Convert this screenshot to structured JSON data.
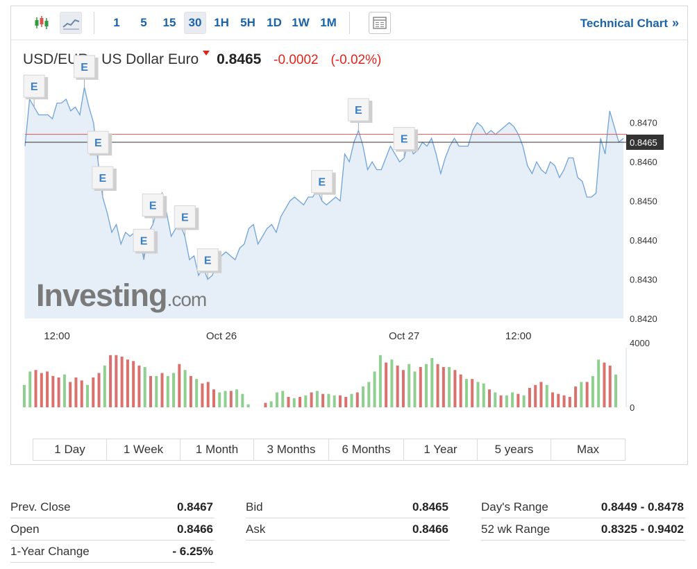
{
  "toolbar": {
    "chart_types": [
      {
        "name": "candlestick-chart-icon"
      },
      {
        "name": "area-chart-icon",
        "active": true
      }
    ],
    "intervals": [
      "1",
      "5",
      "15",
      "30",
      "1H",
      "5H",
      "1D",
      "1W",
      "1M"
    ],
    "active_interval": "30",
    "indicator_icon": "table-icon",
    "technical_link": "Technical Chart",
    "technical_arrows": "»"
  },
  "quote": {
    "name": "USD/EUR - US Dollar Euro",
    "last": "0.8465",
    "change": "-0.0002",
    "change_pct": "(-0.02%)",
    "direction": "down"
  },
  "watermark": {
    "main": "Investing",
    "suffix": ".com"
  },
  "colors": {
    "line": "#6fa3d8",
    "area": "#e6eef7",
    "up_volume": "#8fcf8f",
    "down_volume": "#d9716e",
    "prev_close_line": "#e05555",
    "last_price_line": "#333333",
    "label_bg": "#333333",
    "accent_link": "#1a63a8",
    "negative": "#e2231a"
  },
  "chart_data": {
    "type": "area",
    "instrument": "USD/EUR",
    "x_ticks": [
      "12:00",
      "Oct 26",
      "Oct 27",
      "12:00"
    ],
    "y_ticks": [
      "0.8420",
      "0.8430",
      "0.8440",
      "0.8450",
      "0.8460",
      "0.8470"
    ],
    "ylim": [
      0.842,
      0.8482
    ],
    "last_price": 0.8465,
    "last_price_label": "0.8465",
    "prev_close": 0.8467,
    "price": [
      0.8464,
      0.8476,
      0.8474,
      0.8472,
      0.8472,
      0.8472,
      0.8471,
      0.8475,
      0.8475,
      0.8476,
      0.8473,
      0.8474,
      0.8472,
      0.8479,
      0.8474,
      0.847,
      0.846,
      0.8451,
      0.8447,
      0.8442,
      0.8444,
      0.8439,
      0.8442,
      0.8441,
      0.8442,
      0.8442,
      0.8435,
      0.8442,
      0.8444,
      0.8448,
      0.8452,
      0.8447,
      0.8441,
      0.8443,
      0.8444,
      0.8441,
      0.8435,
      0.8436,
      0.8431,
      0.8433,
      0.843,
      0.8431,
      0.8434,
      0.8436,
      0.8437,
      0.8436,
      0.8435,
      0.8438,
      0.8439,
      0.8443,
      0.8444,
      0.8439,
      0.8441,
      0.8443,
      0.8444,
      0.8442,
      0.8446,
      0.8448,
      0.845,
      0.8451,
      0.845,
      0.8449,
      0.8451,
      0.8451,
      0.8453,
      0.845,
      0.8449,
      0.845,
      0.8451,
      0.845,
      0.8462,
      0.846,
      0.8465,
      0.8468,
      0.8464,
      0.8458,
      0.846,
      0.8458,
      0.8458,
      0.8461,
      0.8464,
      0.8462,
      0.846,
      0.8461,
      0.8466,
      0.8462,
      0.8463,
      0.8465,
      0.8464,
      0.8466,
      0.8462,
      0.8457,
      0.8461,
      0.8464,
      0.8466,
      0.8464,
      0.8464,
      0.8464,
      0.8468,
      0.847,
      0.8469,
      0.8467,
      0.8468,
      0.8467,
      0.8468,
      0.8469,
      0.847,
      0.8469,
      0.8467,
      0.8464,
      0.8459,
      0.8457,
      0.846,
      0.8458,
      0.8457,
      0.846,
      0.8459,
      0.8456,
      0.8458,
      0.8461,
      0.8461,
      0.8456,
      0.8455,
      0.8451,
      0.8451,
      0.8452,
      0.8466,
      0.8462,
      0.8473,
      0.8469,
      0.8465,
      0.8466
    ],
    "volume_axis_ticks": [
      "4000",
      "0"
    ],
    "volume_max": 4000,
    "volume": [
      {
        "v": 1500,
        "d": "up"
      },
      {
        "v": 2400,
        "d": "up"
      },
      {
        "v": 2500,
        "d": "down"
      },
      {
        "v": 2300,
        "d": "down"
      },
      {
        "v": 2400,
        "d": "down"
      },
      {
        "v": 2100,
        "d": "down"
      },
      {
        "v": 2000,
        "d": "down"
      },
      {
        "v": 2200,
        "d": "up"
      },
      {
        "v": 1700,
        "d": "down"
      },
      {
        "v": 2000,
        "d": "down"
      },
      {
        "v": 1800,
        "d": "down"
      },
      {
        "v": 1500,
        "d": "up"
      },
      {
        "v": 2000,
        "d": "down"
      },
      {
        "v": 2300,
        "d": "down"
      },
      {
        "v": 2800,
        "d": "up"
      },
      {
        "v": 3500,
        "d": "down"
      },
      {
        "v": 3500,
        "d": "down"
      },
      {
        "v": 3400,
        "d": "down"
      },
      {
        "v": 3200,
        "d": "down"
      },
      {
        "v": 3100,
        "d": "down"
      },
      {
        "v": 2800,
        "d": "down"
      },
      {
        "v": 2700,
        "d": "up"
      },
      {
        "v": 2100,
        "d": "down"
      },
      {
        "v": 2100,
        "d": "up"
      },
      {
        "v": 2300,
        "d": "down"
      },
      {
        "v": 2100,
        "d": "up"
      },
      {
        "v": 2300,
        "d": "up"
      },
      {
        "v": 2900,
        "d": "down"
      },
      {
        "v": 2500,
        "d": "up"
      },
      {
        "v": 2100,
        "d": "down"
      },
      {
        "v": 1900,
        "d": "up"
      },
      {
        "v": 1600,
        "d": "down"
      },
      {
        "v": 1700,
        "d": "down"
      },
      {
        "v": 1200,
        "d": "down"
      },
      {
        "v": 1000,
        "d": "up"
      },
      {
        "v": 1100,
        "d": "up"
      },
      {
        "v": 1100,
        "d": "down"
      },
      {
        "v": 1200,
        "d": "up"
      },
      {
        "v": 900,
        "d": "up"
      },
      {
        "v": 200,
        "d": "up"
      },
      {
        "v": 0,
        "d": "up"
      },
      {
        "v": 0,
        "d": "up"
      },
      {
        "v": 300,
        "d": "down"
      },
      {
        "v": 400,
        "d": "up"
      },
      {
        "v": 1000,
        "d": "up"
      },
      {
        "v": 1100,
        "d": "up"
      },
      {
        "v": 700,
        "d": "down"
      },
      {
        "v": 600,
        "d": "up"
      },
      {
        "v": 700,
        "d": "down"
      },
      {
        "v": 800,
        "d": "up"
      },
      {
        "v": 1000,
        "d": "down"
      },
      {
        "v": 1100,
        "d": "up"
      },
      {
        "v": 900,
        "d": "down"
      },
      {
        "v": 900,
        "d": "up"
      },
      {
        "v": 800,
        "d": "up"
      },
      {
        "v": 800,
        "d": "down"
      },
      {
        "v": 700,
        "d": "down"
      },
      {
        "v": 900,
        "d": "up"
      },
      {
        "v": 1000,
        "d": "down"
      },
      {
        "v": 1400,
        "d": "up"
      },
      {
        "v": 1700,
        "d": "up"
      },
      {
        "v": 2400,
        "d": "up"
      },
      {
        "v": 3500,
        "d": "up"
      },
      {
        "v": 3000,
        "d": "down"
      },
      {
        "v": 3200,
        "d": "up"
      },
      {
        "v": 2800,
        "d": "down"
      },
      {
        "v": 2500,
        "d": "down"
      },
      {
        "v": 2900,
        "d": "up"
      },
      {
        "v": 2400,
        "d": "up"
      },
      {
        "v": 2700,
        "d": "down"
      },
      {
        "v": 2900,
        "d": "up"
      },
      {
        "v": 3300,
        "d": "up"
      },
      {
        "v": 2900,
        "d": "down"
      },
      {
        "v": 2700,
        "d": "down"
      },
      {
        "v": 2700,
        "d": "up"
      },
      {
        "v": 2500,
        "d": "down"
      },
      {
        "v": 2200,
        "d": "down"
      },
      {
        "v": 1900,
        "d": "up"
      },
      {
        "v": 1900,
        "d": "down"
      },
      {
        "v": 1700,
        "d": "up"
      },
      {
        "v": 1600,
        "d": "up"
      },
      {
        "v": 1200,
        "d": "down"
      },
      {
        "v": 1000,
        "d": "up"
      },
      {
        "v": 800,
        "d": "down"
      },
      {
        "v": 800,
        "d": "up"
      },
      {
        "v": 1000,
        "d": "up"
      },
      {
        "v": 900,
        "d": "down"
      },
      {
        "v": 800,
        "d": "up"
      },
      {
        "v": 1300,
        "d": "down"
      },
      {
        "v": 1500,
        "d": "down"
      },
      {
        "v": 1700,
        "d": "down"
      },
      {
        "v": 1500,
        "d": "up"
      },
      {
        "v": 1000,
        "d": "down"
      },
      {
        "v": 900,
        "d": "down"
      },
      {
        "v": 800,
        "d": "down"
      },
      {
        "v": 700,
        "d": "down"
      },
      {
        "v": 1400,
        "d": "down"
      },
      {
        "v": 1700,
        "d": "up"
      },
      {
        "v": 1700,
        "d": "down"
      },
      {
        "v": 2100,
        "d": "up"
      },
      {
        "v": 3200,
        "d": "up"
      },
      {
        "v": 3000,
        "d": "down"
      },
      {
        "v": 2800,
        "d": "down"
      },
      {
        "v": 2200,
        "d": "up"
      }
    ],
    "events": [
      {
        "i": 2,
        "label": "E"
      },
      {
        "i": 13,
        "label": "E"
      },
      {
        "i": 16,
        "label": "E"
      },
      {
        "i": 17,
        "label": "E"
      },
      {
        "i": 26,
        "label": "E"
      },
      {
        "i": 28,
        "label": "E"
      },
      {
        "i": 35,
        "label": "E"
      },
      {
        "i": 40,
        "label": "E"
      },
      {
        "i": 65,
        "label": "E"
      },
      {
        "i": 73,
        "label": "E"
      },
      {
        "i": 83,
        "label": "E"
      }
    ]
  },
  "range_tabs": [
    "1 Day",
    "1 Week",
    "1 Month",
    "3 Months",
    "6 Months",
    "1 Year",
    "5 years",
    "Max"
  ],
  "stats": {
    "col1": [
      {
        "label": "Prev. Close",
        "value": "0.8467"
      },
      {
        "label": "Open",
        "value": "0.8466"
      },
      {
        "label": "1-Year Change",
        "value": "- 6.25%"
      }
    ],
    "col2": [
      {
        "label": "Bid",
        "value": "0.8465"
      },
      {
        "label": "Ask",
        "value": "0.8466"
      }
    ],
    "col3": [
      {
        "label": "Day's Range",
        "value": "0.8449 - 0.8478"
      },
      {
        "label": "52 wk Range",
        "value": "0.8325 - 0.9402"
      }
    ]
  }
}
